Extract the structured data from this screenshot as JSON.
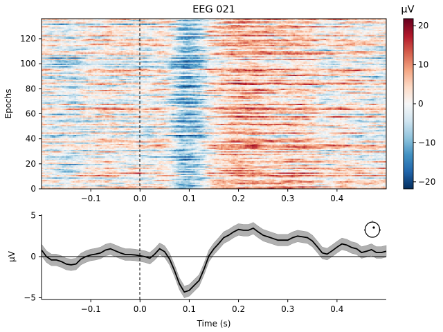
{
  "chart_data": [
    {
      "type": "heatmap",
      "title": "EEG 021",
      "ylabel": "Epochs",
      "xlabel": "",
      "xlim": [
        -0.2,
        0.5
      ],
      "ylim": [
        0,
        136
      ],
      "xticks": [
        -0.1,
        0.0,
        0.1,
        0.2,
        0.3,
        0.4
      ],
      "xtick_labels": [
        "−0.1",
        "0.0",
        "0.1",
        "0.2",
        "0.3",
        "0.4"
      ],
      "yticks": [
        0,
        20,
        40,
        60,
        80,
        100,
        120
      ],
      "ytick_labels": [
        "0",
        "20",
        "40",
        "60",
        "80",
        "100",
        "120"
      ],
      "colormap": "RdBu_r",
      "vmin": -21.8,
      "vmax": 21.8,
      "event_line_time": 0.0,
      "colorbar": {
        "label": "µV",
        "ticks": [
          -20,
          -10,
          0,
          10,
          20
        ],
        "tick_labels": [
          "−20",
          "−10",
          "0",
          "10",
          "20"
        ]
      }
    },
    {
      "type": "line",
      "xlabel": "Time (s)",
      "ylabel": "µV",
      "xlim": [
        -0.2,
        0.5
      ],
      "ylim": [
        -5.3,
        5.3
      ],
      "xticks": [
        -0.1,
        0.0,
        0.1,
        0.2,
        0.3,
        0.4
      ],
      "xtick_labels": [
        "−0.1",
        "0.0",
        "0.1",
        "0.2",
        "0.3",
        "0.4"
      ],
      "yticks": [
        -5,
        0,
        5
      ],
      "ytick_labels": [
        "−5",
        "0",
        "5"
      ],
      "line_color": "#000000",
      "band_color": "#b0b0b0",
      "band_halfwidth": 0.7,
      "x": [
        -0.2,
        -0.19,
        -0.18,
        -0.17,
        -0.16,
        -0.15,
        -0.14,
        -0.13,
        -0.12,
        -0.11,
        -0.1,
        -0.09,
        -0.08,
        -0.07,
        -0.06,
        -0.05,
        -0.04,
        -0.03,
        -0.02,
        -0.01,
        0.0,
        0.01,
        0.02,
        0.03,
        0.04,
        0.05,
        0.06,
        0.07,
        0.08,
        0.09,
        0.1,
        0.11,
        0.12,
        0.13,
        0.14,
        0.15,
        0.16,
        0.17,
        0.18,
        0.19,
        0.2,
        0.21,
        0.22,
        0.23,
        0.24,
        0.25,
        0.26,
        0.27,
        0.28,
        0.29,
        0.3,
        0.31,
        0.32,
        0.33,
        0.34,
        0.35,
        0.36,
        0.37,
        0.38,
        0.39,
        0.4,
        0.41,
        0.42,
        0.43,
        0.44,
        0.45,
        0.46,
        0.47,
        0.48,
        0.49,
        0.5
      ],
      "y": [
        0.8,
        0.0,
        -0.4,
        -0.4,
        -0.6,
        -0.9,
        -1.0,
        -0.9,
        -0.3,
        0.0,
        0.2,
        0.3,
        0.45,
        0.8,
        0.95,
        0.7,
        0.45,
        0.25,
        0.25,
        0.2,
        0.1,
        0.0,
        -0.2,
        0.3,
        0.95,
        0.6,
        -0.3,
        -1.7,
        -3.3,
        -4.3,
        -4.1,
        -3.5,
        -2.9,
        -1.5,
        0.1,
        0.95,
        1.6,
        2.3,
        2.6,
        3.0,
        3.3,
        3.2,
        3.2,
        3.45,
        3.0,
        2.6,
        2.4,
        2.2,
        2.0,
        2.0,
        2.0,
        2.3,
        2.5,
        2.4,
        2.3,
        1.9,
        1.2,
        0.45,
        0.3,
        0.7,
        1.15,
        1.55,
        1.4,
        1.1,
        0.95,
        0.5,
        0.65,
        0.85,
        0.5,
        0.5,
        0.65
      ],
      "zero_line": 0,
      "event_line_time": 0.0,
      "sensor_inset": "head-outline-with-sensor-dot"
    }
  ]
}
